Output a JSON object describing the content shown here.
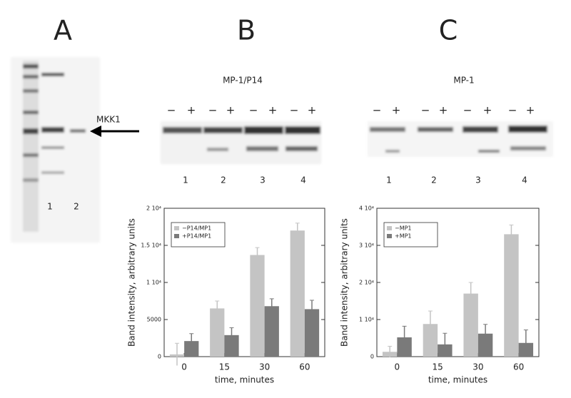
{
  "panels": {
    "A": {
      "label": "A",
      "marker": "MKK1",
      "lanes": [
        "1",
        "2"
      ]
    },
    "B": {
      "label": "B",
      "title": "MP-1/P14",
      "signs": [
        "−",
        "+",
        "−",
        "+",
        "−",
        "+",
        "−",
        "+"
      ],
      "lanes": [
        "1",
        "2",
        "3",
        "4"
      ]
    },
    "C": {
      "label": "C",
      "title": "MP-1",
      "signs": [
        "−",
        "+",
        "−",
        "+",
        "−",
        "+",
        "−",
        "+"
      ],
      "lanes": [
        "1",
        "2",
        "3",
        "4"
      ]
    }
  },
  "chart_data": [
    {
      "type": "bar",
      "xlabel": "time, minutes",
      "ylabel": "Band intensity, arbitrary units",
      "categories": [
        "0",
        "15",
        "30",
        "60"
      ],
      "series": [
        {
          "name": "−P14/MP1",
          "color": "#c4c4c4",
          "values": [
            300,
            6500,
            13700,
            17000
          ],
          "errors": [
            1500,
            1000,
            1000,
            1000
          ]
        },
        {
          "name": "+P14/MP1",
          "color": "#7a7a7a",
          "values": [
            2100,
            2900,
            6800,
            6400
          ],
          "errors": [
            1000,
            1000,
            1000,
            1200
          ]
        }
      ],
      "ylim": [
        0,
        20000
      ],
      "yticks": [
        0,
        5000,
        {
          "value": 10000,
          "label": "1 10⁴"
        },
        {
          "value": 15000,
          "label": "1.5 10⁴"
        },
        {
          "value": 20000,
          "label": "2 10⁴"
        }
      ],
      "legend": "upper left"
    },
    {
      "type": "bar",
      "xlabel": "time, minutes",
      "ylabel": "Band intensity, arbitrary units",
      "categories": [
        "0",
        "15",
        "30",
        "60"
      ],
      "series": [
        {
          "name": "−MP1",
          "color": "#c4c4c4",
          "values": [
            1300,
            8800,
            17000,
            33000
          ],
          "errors": [
            1500,
            3500,
            3000,
            2500
          ]
        },
        {
          "name": "+MP1",
          "color": "#7a7a7a",
          "values": [
            5200,
            3300,
            6200,
            3700
          ],
          "errors": [
            3000,
            3000,
            2500,
            3500
          ]
        }
      ],
      "ylim": [
        0,
        40000
      ],
      "yticks": [
        0,
        {
          "value": 10000,
          "label": "1 10⁴"
        },
        {
          "value": 20000,
          "label": "2 10⁴"
        },
        {
          "value": 30000,
          "label": "3 10⁴"
        },
        {
          "value": 40000,
          "label": "4 10⁴"
        }
      ],
      "legend": "upper left"
    }
  ]
}
